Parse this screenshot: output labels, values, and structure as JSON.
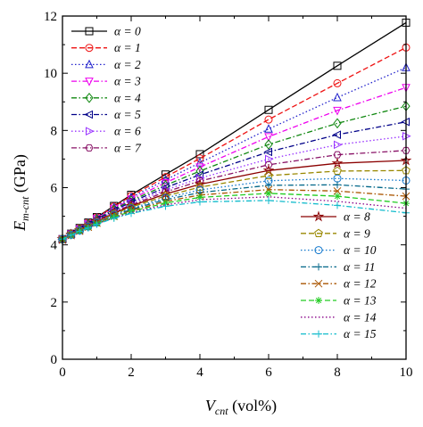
{
  "chart_data": {
    "type": "line",
    "xlabel": {
      "main": "V",
      "sub": "cnt",
      "unit": " (vol%)"
    },
    "ylabel": {
      "main": "E",
      "sub": "m-cnt",
      "unit": " (GPa)"
    },
    "xlim": [
      0,
      10
    ],
    "ylim": [
      0,
      12
    ],
    "xticks": [
      "0",
      "2",
      "4",
      "6",
      "8",
      "10"
    ],
    "yticks": [
      "0",
      "2",
      "4",
      "6",
      "8",
      "10",
      "12"
    ],
    "grid": false,
    "legend_placement": [
      "top-left",
      "bottom-right"
    ],
    "x": [
      0,
      0.25,
      0.5,
      0.75,
      1,
      1.5,
      2,
      3,
      4,
      6,
      8,
      10
    ],
    "series": [
      {
        "name": "α = 0",
        "color": "#000000",
        "dash": "solid",
        "marker": "square",
        "values": [
          4.2,
          4.39,
          4.59,
          4.78,
          4.97,
          5.36,
          5.75,
          6.46,
          7.17,
          8.72,
          10.26,
          11.77
        ]
      },
      {
        "name": "α = 1",
        "color": "#ee1111",
        "dash": "dash",
        "marker": "circle",
        "values": [
          4.2,
          4.39,
          4.58,
          4.77,
          4.96,
          5.34,
          5.71,
          6.37,
          7.02,
          8.38,
          9.65,
          10.9
        ]
      },
      {
        "name": "α = 2",
        "color": "#2222cc",
        "dash": "dot",
        "marker": "triangle-up",
        "values": [
          4.2,
          4.38,
          4.57,
          4.76,
          4.94,
          5.31,
          5.66,
          6.27,
          6.87,
          8.05,
          9.15,
          10.2
        ]
      },
      {
        "name": "α = 3",
        "color": "#ee00ee",
        "dash": "dashdot",
        "marker": "triangle-down",
        "values": [
          4.2,
          4.38,
          4.56,
          4.74,
          4.92,
          5.27,
          5.6,
          6.17,
          6.72,
          7.78,
          8.7,
          9.5
        ]
      },
      {
        "name": "α = 4",
        "color": "#118811",
        "dash": "dashdot",
        "marker": "diamond",
        "values": [
          4.2,
          4.37,
          4.55,
          4.73,
          4.9,
          5.24,
          5.55,
          6.08,
          6.58,
          7.51,
          8.25,
          8.85
        ]
      },
      {
        "name": "α = 5",
        "color": "#000088",
        "dash": "dashdot",
        "marker": "triangle-left",
        "values": [
          4.2,
          4.37,
          4.54,
          4.71,
          4.88,
          5.2,
          5.5,
          6.0,
          6.45,
          7.25,
          7.85,
          8.3
        ]
      },
      {
        "name": "α = 6",
        "color": "#9933ff",
        "dash": "dot",
        "marker": "triangle-right",
        "values": [
          4.2,
          4.37,
          4.53,
          4.7,
          4.86,
          5.17,
          5.45,
          5.92,
          6.33,
          7.0,
          7.5,
          7.8
        ]
      },
      {
        "name": "α = 7",
        "color": "#881166",
        "dash": "dashdot",
        "marker": "hexagon",
        "values": [
          4.2,
          4.36,
          4.52,
          4.68,
          4.84,
          5.14,
          5.4,
          5.85,
          6.23,
          6.8,
          7.15,
          7.3
        ]
      },
      {
        "name": "α = 8",
        "color": "#8b0000",
        "dash": "solid",
        "marker": "star",
        "values": [
          4.2,
          4.36,
          4.51,
          4.66,
          4.82,
          5.11,
          5.36,
          5.78,
          6.12,
          6.6,
          6.85,
          6.95
        ]
      },
      {
        "name": "α = 9",
        "color": "#998800",
        "dash": "dash",
        "marker": "pentagon",
        "values": [
          4.2,
          4.36,
          4.51,
          4.65,
          4.8,
          5.08,
          5.32,
          5.71,
          6.02,
          6.42,
          6.58,
          6.6
        ]
      },
      {
        "name": "α = 10",
        "color": "#1177cc",
        "dash": "dot",
        "marker": "circle",
        "values": [
          4.2,
          4.35,
          4.5,
          4.64,
          4.78,
          5.05,
          5.28,
          5.64,
          5.92,
          6.24,
          6.32,
          6.25
        ]
      },
      {
        "name": "α = 11",
        "color": "#006688",
        "dash": "dashdot",
        "marker": "plus",
        "values": [
          4.2,
          4.35,
          4.49,
          4.63,
          4.77,
          5.02,
          5.24,
          5.58,
          5.83,
          6.08,
          6.1,
          5.95
        ]
      },
      {
        "name": "α = 12",
        "color": "#aa5500",
        "dash": "dashdot",
        "marker": "x",
        "values": [
          4.2,
          4.35,
          4.49,
          4.62,
          4.76,
          5.0,
          5.2,
          5.52,
          5.74,
          5.93,
          5.88,
          5.7
        ]
      },
      {
        "name": "α = 13",
        "color": "#22cc22",
        "dash": "dash",
        "marker": "asterisk",
        "values": [
          4.2,
          4.34,
          4.48,
          4.61,
          4.74,
          4.97,
          5.17,
          5.46,
          5.66,
          5.8,
          5.7,
          5.45
        ]
      },
      {
        "name": "α = 14",
        "color": "#880088",
        "dash": "dot",
        "marker": "none",
        "values": [
          4.2,
          4.34,
          4.47,
          4.6,
          4.73,
          4.95,
          5.13,
          5.4,
          5.58,
          5.68,
          5.52,
          5.28
        ]
      },
      {
        "name": "α = 15",
        "color": "#11bbcc",
        "dash": "dashdot",
        "marker": "plus",
        "values": [
          4.2,
          4.34,
          4.47,
          4.59,
          4.72,
          4.93,
          5.1,
          5.35,
          5.5,
          5.55,
          5.38,
          5.12
        ]
      }
    ]
  }
}
